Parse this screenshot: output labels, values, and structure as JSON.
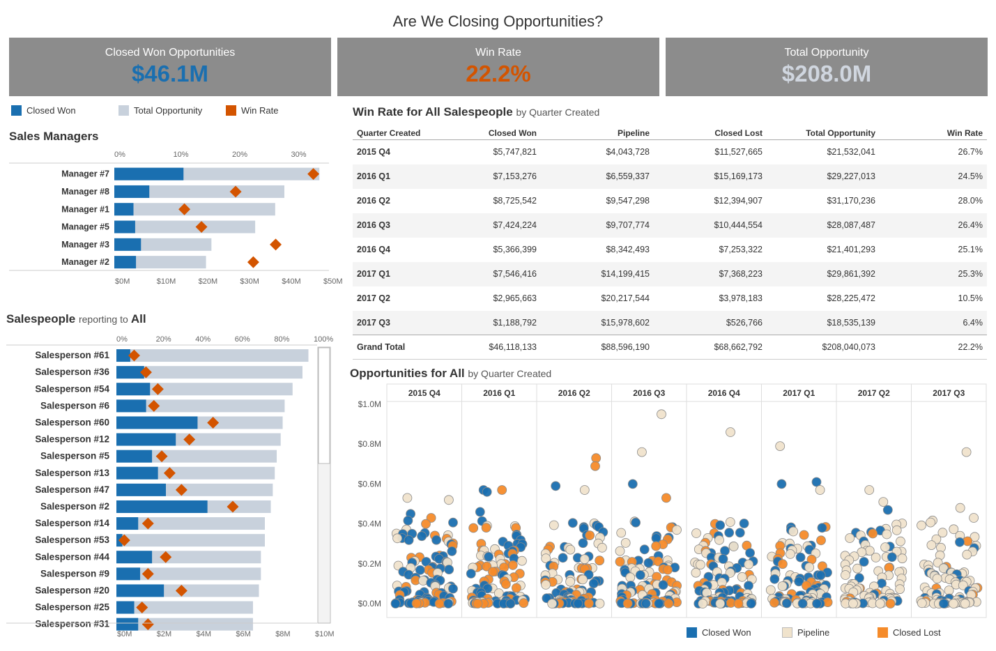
{
  "title": "Are We Closing Opportunities?",
  "kpis": [
    {
      "label": "Closed Won Opportunities",
      "value": "$46.1M",
      "color": "#1a6fb0"
    },
    {
      "label": "Win Rate",
      "value": "22.2%",
      "color": "#d35400"
    },
    {
      "label": "Total Opportunity",
      "value": "$208.0M",
      "color": "#d0d6df"
    }
  ],
  "colors": {
    "closed_won": "#1a6fb0",
    "total_opportunity": "#c8d1dc",
    "win_rate": "#d35400",
    "pipeline": "#f0e3cc",
    "closed_lost": "#f58b2a"
  },
  "legend_top": {
    "closed_won": "Closed Won",
    "total_opportunity": "Total Opportunity",
    "win_rate": "Win Rate"
  },
  "managers": {
    "title": "Sales Managers",
    "pct_ticks": [
      "0%",
      "10%",
      "20%",
      "30%"
    ],
    "dollar_ticks": [
      "$0M",
      "$10M",
      "$20M",
      "$30M",
      "$40M",
      "$50M"
    ],
    "rows": [
      {
        "name": "Manager #7",
        "won": 16.6,
        "total": 49.2,
        "rate": 33.8
      },
      {
        "name": "Manager #8",
        "won": 8.4,
        "total": 40.8,
        "rate": 20.6
      },
      {
        "name": "Manager #1",
        "won": 4.6,
        "total": 38.6,
        "rate": 11.9
      },
      {
        "name": "Manager #5",
        "won": 5.0,
        "total": 33.8,
        "rate": 14.8
      },
      {
        "name": "Manager #3",
        "won": 6.4,
        "total": 23.3,
        "rate": 27.4
      },
      {
        "name": "Manager #2",
        "won": 5.2,
        "total": 22.0,
        "rate": 23.6
      }
    ]
  },
  "salespeople": {
    "title": "Salespeople",
    "sub": "reporting to",
    "scope": "All",
    "pct_ticks": [
      "0%",
      "20%",
      "40%",
      "60%",
      "80%",
      "100%"
    ],
    "dollar_ticks": [
      "$0M",
      "$2M",
      "$4M",
      "$6M",
      "$8M",
      "$10M"
    ],
    "rows": [
      {
        "name": "Salesperson #61",
        "won": 0.7,
        "total": 9.7,
        "rate": 9
      },
      {
        "name": "Salesperson #36",
        "won": 1.4,
        "total": 9.4,
        "rate": 15
      },
      {
        "name": "Salesperson #54",
        "won": 1.7,
        "total": 8.9,
        "rate": 21
      },
      {
        "name": "Salesperson #6",
        "won": 1.5,
        "total": 8.5,
        "rate": 19
      },
      {
        "name": "Salesperson #60",
        "won": 4.1,
        "total": 8.4,
        "rate": 49
      },
      {
        "name": "Salesperson #12",
        "won": 3.0,
        "total": 8.3,
        "rate": 37
      },
      {
        "name": "Salesperson #5",
        "won": 1.8,
        "total": 8.1,
        "rate": 23
      },
      {
        "name": "Salesperson #13",
        "won": 2.1,
        "total": 8.0,
        "rate": 27
      },
      {
        "name": "Salesperson #47",
        "won": 2.5,
        "total": 7.9,
        "rate": 33
      },
      {
        "name": "Salesperson #2",
        "won": 4.6,
        "total": 7.8,
        "rate": 59
      },
      {
        "name": "Salesperson #14",
        "won": 1.1,
        "total": 7.5,
        "rate": 16
      },
      {
        "name": "Salesperson #53",
        "won": 0.3,
        "total": 7.5,
        "rate": 4
      },
      {
        "name": "Salesperson #44",
        "won": 1.8,
        "total": 7.3,
        "rate": 25
      },
      {
        "name": "Salesperson #9",
        "won": 1.2,
        "total": 7.3,
        "rate": 16
      },
      {
        "name": "Salesperson #20",
        "won": 2.4,
        "total": 7.2,
        "rate": 33
      },
      {
        "name": "Salesperson #25",
        "won": 0.9,
        "total": 6.9,
        "rate": 13
      },
      {
        "name": "Salesperson #31",
        "won": 1.1,
        "total": 6.9,
        "rate": 16
      }
    ]
  },
  "winrate_table": {
    "title": "Win Rate for All Salespeople",
    "sub": "by Quarter Created",
    "headers": [
      "Quarter Created",
      "Closed Won",
      "Pipeline",
      "Closed Lost",
      "Total Opportunity",
      "Win Rate"
    ],
    "rows": [
      [
        "2015 Q4",
        "$5,747,821",
        "$4,043,728",
        "$11,527,665",
        "$21,532,041",
        "26.7%"
      ],
      [
        "2016 Q1",
        "$7,153,276",
        "$6,559,337",
        "$15,169,173",
        "$29,227,013",
        "24.5%"
      ],
      [
        "2016 Q2",
        "$8,725,542",
        "$9,547,298",
        "$12,394,907",
        "$31,170,236",
        "28.0%"
      ],
      [
        "2016 Q3",
        "$7,424,224",
        "$9,707,774",
        "$10,444,554",
        "$28,087,487",
        "26.4%"
      ],
      [
        "2016 Q4",
        "$5,366,399",
        "$8,342,493",
        "$7,253,322",
        "$21,401,293",
        "25.1%"
      ],
      [
        "2017 Q1",
        "$7,546,416",
        "$14,199,415",
        "$7,368,223",
        "$29,861,392",
        "25.3%"
      ],
      [
        "2017 Q2",
        "$2,965,663",
        "$20,217,544",
        "$3,978,183",
        "$28,225,472",
        "10.5%"
      ],
      [
        "2017 Q3",
        "$1,188,792",
        "$15,978,602",
        "$526,766",
        "$18,535,139",
        "6.4%"
      ]
    ],
    "total": [
      "Grand Total",
      "$46,118,133",
      "$88,596,190",
      "$68,662,792",
      "$208,040,073",
      "22.2%"
    ]
  },
  "scatter": {
    "title": "Opportunities for All",
    "sub": "by Quarter Created",
    "quarters": [
      "2015 Q4",
      "2016 Q1",
      "2016 Q2",
      "2016 Q3",
      "2016 Q4",
      "2017 Q1",
      "2017 Q2",
      "2017 Q3"
    ],
    "y_ticks": [
      "$0.0M",
      "$0.2M",
      "$0.4M",
      "$0.6M",
      "$0.8M",
      "$1.0M"
    ],
    "highlights": [
      {
        "q": 0,
        "v": 0.52,
        "t": "pipeline"
      },
      {
        "q": 0,
        "v": 0.53,
        "t": "pipeline"
      },
      {
        "q": 0,
        "v": 0.45,
        "t": "won"
      },
      {
        "q": 0,
        "v": 0.43,
        "t": "lost"
      },
      {
        "q": 0,
        "v": 0.4,
        "t": "lost"
      },
      {
        "q": 1,
        "v": 0.57,
        "t": "lost"
      },
      {
        "q": 1,
        "v": 0.56,
        "t": "won"
      },
      {
        "q": 1,
        "v": 0.57,
        "t": "won"
      },
      {
        "q": 1,
        "v": 0.46,
        "t": "won"
      },
      {
        "q": 2,
        "v": 0.73,
        "t": "lost"
      },
      {
        "q": 2,
        "v": 0.69,
        "t": "lost"
      },
      {
        "q": 2,
        "v": 0.59,
        "t": "won"
      },
      {
        "q": 2,
        "v": 0.57,
        "t": "pipeline"
      },
      {
        "q": 3,
        "v": 0.95,
        "t": "pipeline"
      },
      {
        "q": 3,
        "v": 0.76,
        "t": "pipeline"
      },
      {
        "q": 3,
        "v": 0.6,
        "t": "won"
      },
      {
        "q": 3,
        "v": 0.53,
        "t": "lost"
      },
      {
        "q": 4,
        "v": 0.86,
        "t": "pipeline"
      },
      {
        "q": 4,
        "v": 0.4,
        "t": "lost"
      },
      {
        "q": 5,
        "v": 0.79,
        "t": "pipeline"
      },
      {
        "q": 5,
        "v": 0.61,
        "t": "won"
      },
      {
        "q": 5,
        "v": 0.6,
        "t": "won"
      },
      {
        "q": 5,
        "v": 0.57,
        "t": "pipeline"
      },
      {
        "q": 6,
        "v": 0.57,
        "t": "pipeline"
      },
      {
        "q": 6,
        "v": 0.51,
        "t": "pipeline"
      },
      {
        "q": 6,
        "v": 0.47,
        "t": "won"
      },
      {
        "q": 7,
        "v": 0.76,
        "t": "pipeline"
      },
      {
        "q": 7,
        "v": 0.48,
        "t": "pipeline"
      },
      {
        "q": 7,
        "v": 0.43,
        "t": "pipeline"
      }
    ],
    "mix": [
      [
        0.55,
        0.2,
        0.25
      ],
      [
        0.5,
        0.22,
        0.28
      ],
      [
        0.45,
        0.3,
        0.25
      ],
      [
        0.45,
        0.3,
        0.25
      ],
      [
        0.5,
        0.35,
        0.15
      ],
      [
        0.45,
        0.4,
        0.15
      ],
      [
        0.2,
        0.7,
        0.1
      ],
      [
        0.15,
        0.8,
        0.05
      ]
    ]
  },
  "legend_bottom": {
    "closed_won": "Closed Won",
    "pipeline": "Pipeline",
    "closed_lost": "Closed Lost"
  }
}
